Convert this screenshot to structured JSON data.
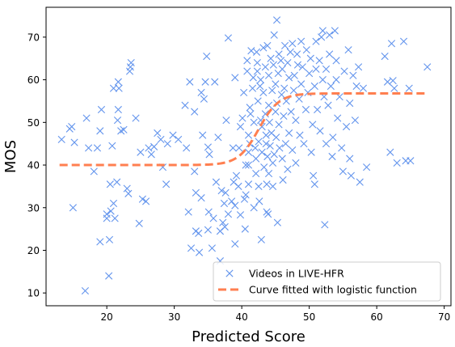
{
  "chart_data": {
    "type": "scatter",
    "xlabel": "Predicted Score",
    "ylabel": "MOS",
    "xlim": [
      11,
      71
    ],
    "ylim": [
      7,
      77
    ],
    "x_ticks": [
      20,
      30,
      40,
      50,
      60,
      70
    ],
    "y_ticks": [
      10,
      20,
      30,
      40,
      50,
      60,
      70
    ],
    "grid": false,
    "legend_position": "lower-right",
    "colors": {
      "scatter": "#6495ed",
      "fit": "#ff7f50"
    },
    "series": [
      {
        "name": "Videos in LIVE-HFR",
        "marker": "x",
        "points": [
          [
            13.3,
            46
          ],
          [
            14.5,
            48.5
          ],
          [
            14.8,
            49
          ],
          [
            15,
            30
          ],
          [
            15.2,
            45.3
          ],
          [
            16.8,
            10.5
          ],
          [
            17,
            51
          ],
          [
            17.3,
            44
          ],
          [
            18.1,
            38.5
          ],
          [
            18.6,
            44
          ],
          [
            19,
            48
          ],
          [
            19.2,
            53
          ],
          [
            19,
            22
          ],
          [
            20,
            28.5
          ],
          [
            20,
            27.5
          ],
          [
            20.3,
            14
          ],
          [
            20.4,
            22.5
          ],
          [
            20.5,
            35.5
          ],
          [
            20.6,
            29.2
          ],
          [
            20.8,
            44.5
          ],
          [
            21,
            58
          ],
          [
            21,
            31
          ],
          [
            21.2,
            27.5
          ],
          [
            21.5,
            36
          ],
          [
            21.6,
            50.5
          ],
          [
            21.7,
            53
          ],
          [
            21.8,
            58
          ],
          [
            21.7,
            59.5
          ],
          [
            22.1,
            48
          ],
          [
            22.5,
            48.3
          ],
          [
            23,
            34.5
          ],
          [
            23.2,
            33.3
          ],
          [
            23.4,
            62
          ],
          [
            23.5,
            63
          ],
          [
            23.6,
            64
          ],
          [
            24.3,
            51
          ],
          [
            24.8,
            26.3
          ],
          [
            25,
            43
          ],
          [
            25.3,
            32
          ],
          [
            25.8,
            31.5
          ],
          [
            26.2,
            44
          ],
          [
            26.6,
            42.5
          ],
          [
            27,
            44.3
          ],
          [
            27.5,
            47.5
          ],
          [
            28,
            46
          ],
          [
            28.3,
            39.5
          ],
          [
            28.8,
            35.5
          ],
          [
            29,
            45
          ],
          [
            29.8,
            47
          ],
          [
            30.6,
            46
          ],
          [
            31.6,
            54
          ],
          [
            31.8,
            44
          ],
          [
            32.1,
            29
          ],
          [
            32.3,
            59.5
          ],
          [
            32.5,
            20.5
          ],
          [
            33,
            52.5
          ],
          [
            33,
            38.5
          ],
          [
            33.2,
            33.5
          ],
          [
            33.2,
            24.5
          ],
          [
            33.6,
            24
          ],
          [
            33.7,
            19.5
          ],
          [
            34,
            57
          ],
          [
            34,
            32.3
          ],
          [
            34.2,
            47
          ],
          [
            34.4,
            55.5
          ],
          [
            34.6,
            59.5
          ],
          [
            34.8,
            65.5
          ],
          [
            35,
            44.2
          ],
          [
            35.1,
            29
          ],
          [
            35,
            24.8
          ],
          [
            35.2,
            42.5
          ],
          [
            35.6,
            20.5
          ],
          [
            35.8,
            27.5
          ],
          [
            36,
            59.5
          ],
          [
            36.2,
            36
          ],
          [
            36.5,
            46.5
          ],
          [
            36.8,
            24.5
          ],
          [
            36.8,
            17.5
          ],
          [
            37,
            34
          ],
          [
            37.2,
            26.5
          ],
          [
            37.4,
            31
          ],
          [
            37.5,
            25.5
          ],
          [
            37.6,
            33.5
          ],
          [
            37.7,
            50.5
          ],
          [
            38,
            69.8
          ],
          [
            38,
            28.5
          ],
          [
            38.5,
            31.5
          ],
          [
            38.7,
            44
          ],
          [
            38.8,
            36
          ],
          [
            39,
            30.5
          ],
          [
            39,
            21.5
          ],
          [
            39,
            60.5
          ],
          [
            39.2,
            37.5
          ],
          [
            39.5,
            35
          ],
          [
            39.6,
            44
          ],
          [
            39.8,
            49
          ],
          [
            39.8,
            28.3
          ],
          [
            40.1,
            51
          ],
          [
            40.3,
            57
          ],
          [
            40.4,
            32
          ],
          [
            40.5,
            25
          ],
          [
            40.6,
            40
          ],
          [
            40.6,
            33
          ],
          [
            40.8,
            64.5
          ],
          [
            40.8,
            62
          ],
          [
            41,
            35.5
          ],
          [
            41,
            40
          ],
          [
            41,
            43
          ],
          [
            41,
            47
          ],
          [
            41.2,
            45
          ],
          [
            41.2,
            53.5
          ],
          [
            41.3,
            52
          ],
          [
            41.4,
            66.8
          ],
          [
            41.6,
            58
          ],
          [
            41.7,
            60.5
          ],
          [
            41.8,
            50
          ],
          [
            41.8,
            30
          ],
          [
            42,
            44
          ],
          [
            42.1,
            41.5
          ],
          [
            42.1,
            38
          ],
          [
            42.2,
            66.5
          ],
          [
            42.3,
            64
          ],
          [
            42.3,
            62
          ],
          [
            42.4,
            55
          ],
          [
            42.5,
            45.5
          ],
          [
            42.5,
            35
          ],
          [
            42.6,
            31.5
          ],
          [
            42.7,
            58.5
          ],
          [
            42.8,
            60
          ],
          [
            42.8,
            50.5
          ],
          [
            42.9,
            22.5
          ],
          [
            43,
            49
          ],
          [
            43,
            43
          ],
          [
            43.2,
            67.5
          ],
          [
            43.2,
            57
          ],
          [
            43.3,
            39.5
          ],
          [
            43.5,
            52
          ],
          [
            43.5,
            63
          ],
          [
            43.6,
            47
          ],
          [
            43.6,
            45
          ],
          [
            43.7,
            35.5
          ],
          [
            43.7,
            29
          ],
          [
            43.8,
            68
          ],
          [
            43.8,
            42
          ],
          [
            43.9,
            28.5
          ],
          [
            44,
            61
          ],
          [
            44,
            54
          ],
          [
            44,
            38
          ],
          [
            44.1,
            50
          ],
          [
            44.2,
            44.5
          ],
          [
            44.3,
            65
          ],
          [
            44.4,
            47.5
          ],
          [
            44.5,
            57.5
          ],
          [
            44.6,
            35
          ],
          [
            44.6,
            40.5
          ],
          [
            44.7,
            63.5
          ],
          [
            44.8,
            70.5
          ],
          [
            44.8,
            42.5
          ],
          [
            45,
            59
          ],
          [
            45,
            52.5
          ],
          [
            45.1,
            46.5
          ],
          [
            45.2,
            74
          ],
          [
            45.2,
            54.5
          ],
          [
            45.3,
            26.5
          ],
          [
            45.4,
            61.5
          ],
          [
            45.5,
            66
          ],
          [
            45.5,
            49.5
          ],
          [
            45.6,
            44
          ],
          [
            45.8,
            64.5
          ],
          [
            45.9,
            56.5
          ],
          [
            46,
            62.5
          ],
          [
            46,
            41.5
          ],
          [
            46.1,
            36.5
          ],
          [
            46.2,
            51.5
          ],
          [
            46.3,
            58
          ],
          [
            46.4,
            68
          ],
          [
            46.5,
            45
          ],
          [
            46.6,
            55
          ],
          [
            46.8,
            64
          ],
          [
            46.8,
            39
          ],
          [
            47,
            60.5
          ],
          [
            47,
            47.5
          ],
          [
            47.2,
            66.5
          ],
          [
            47.3,
            52.5
          ],
          [
            47.5,
            68.5
          ],
          [
            47.5,
            43.5
          ],
          [
            47.7,
            57.5
          ],
          [
            47.8,
            61
          ],
          [
            48,
            40.5
          ],
          [
            48,
            50.5
          ],
          [
            48.2,
            66
          ],
          [
            48.3,
            63.5
          ],
          [
            48.5,
            55.5
          ],
          [
            48.6,
            47
          ],
          [
            48.8,
            59
          ],
          [
            48.8,
            69
          ],
          [
            49,
            63
          ],
          [
            49.2,
            45
          ],
          [
            49.5,
            53
          ],
          [
            49.6,
            67
          ],
          [
            49.8,
            57
          ],
          [
            50,
            61.5
          ],
          [
            50.2,
            65
          ],
          [
            50.3,
            43
          ],
          [
            50.5,
            49.5
          ],
          [
            50.6,
            37.5
          ],
          [
            50.8,
            58.5
          ],
          [
            50.8,
            35.5
          ],
          [
            51,
            69
          ],
          [
            51,
            62.5
          ],
          [
            51.2,
            53
          ],
          [
            51.5,
            64.5
          ],
          [
            51.6,
            48
          ],
          [
            51.8,
            70
          ],
          [
            52,
            71.5
          ],
          [
            52,
            60
          ],
          [
            52.2,
            56
          ],
          [
            52.3,
            26
          ],
          [
            52.5,
            62.5
          ],
          [
            52.5,
            45
          ],
          [
            52.8,
            54
          ],
          [
            53,
            70.5
          ],
          [
            53,
            66
          ],
          [
            53.2,
            58.5
          ],
          [
            53.4,
            42
          ],
          [
            53.5,
            46.5
          ],
          [
            53.8,
            71.5
          ],
          [
            54,
            64.5
          ],
          [
            54,
            60
          ],
          [
            54.2,
            51
          ],
          [
            54.5,
            56
          ],
          [
            54.8,
            44
          ],
          [
            55,
            38.5
          ],
          [
            55.2,
            62
          ],
          [
            55.5,
            49
          ],
          [
            55.8,
            67
          ],
          [
            56,
            54.5
          ],
          [
            56,
            41.5
          ],
          [
            56.2,
            37.5
          ],
          [
            56.5,
            61
          ],
          [
            56.8,
            50.5
          ],
          [
            57,
            58.5
          ],
          [
            57.3,
            63
          ],
          [
            57.5,
            36
          ],
          [
            58,
            58
          ],
          [
            58.5,
            39.5
          ],
          [
            61.2,
            65.5
          ],
          [
            61.6,
            59.5
          ],
          [
            62,
            43
          ],
          [
            62.2,
            68.5
          ],
          [
            62.4,
            59.8
          ],
          [
            62.6,
            58
          ],
          [
            63,
            40.5
          ],
          [
            64,
            69
          ],
          [
            64.3,
            41
          ],
          [
            64.8,
            58
          ],
          [
            65,
            41
          ],
          [
            67.5,
            63
          ]
        ]
      },
      {
        "name": "Curve fitted with logistic function",
        "type": "line",
        "style": "dashed",
        "model": "logistic",
        "params": {
          "lower": 40,
          "upper": 56.8,
          "center": 42.5,
          "scale": 1.5
        },
        "x_range": [
          13,
          67.5
        ]
      }
    ]
  }
}
